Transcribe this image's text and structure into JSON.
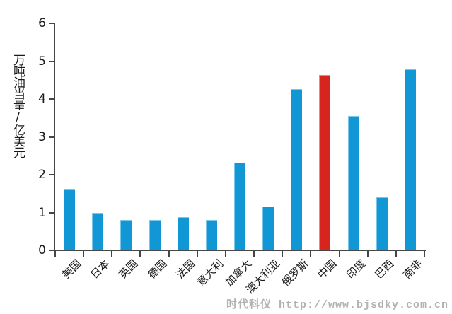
{
  "chart_data": {
    "type": "bar",
    "title": "",
    "xlabel": "",
    "ylabel": "万吨油当量/亿美元",
    "ylim": [
      0,
      6
    ],
    "yticks": [
      0,
      1,
      2,
      3,
      4,
      5,
      6
    ],
    "grid": false,
    "legend_position": "none",
    "categories": [
      "美国",
      "日本",
      "英国",
      "德国",
      "法国",
      "意大利",
      "加拿大",
      "澳大利亚",
      "俄罗斯",
      "中国",
      "印度",
      "巴西",
      "南非"
    ],
    "values": [
      1.62,
      1.0,
      0.8,
      0.81,
      0.88,
      0.8,
      2.32,
      1.15,
      4.26,
      4.64,
      3.56,
      1.41,
      4.79
    ],
    "highlight_index": 9,
    "highlight_category": "中国",
    "colors": {
      "bar": "#1197d6",
      "highlight": "#d6251d",
      "axis": "#464646",
      "text": "#1a1a1a",
      "watermark": "#b2b2b2"
    }
  },
  "watermark": {
    "text": "时代科仪 http://www.bjsdky.com.cn"
  }
}
